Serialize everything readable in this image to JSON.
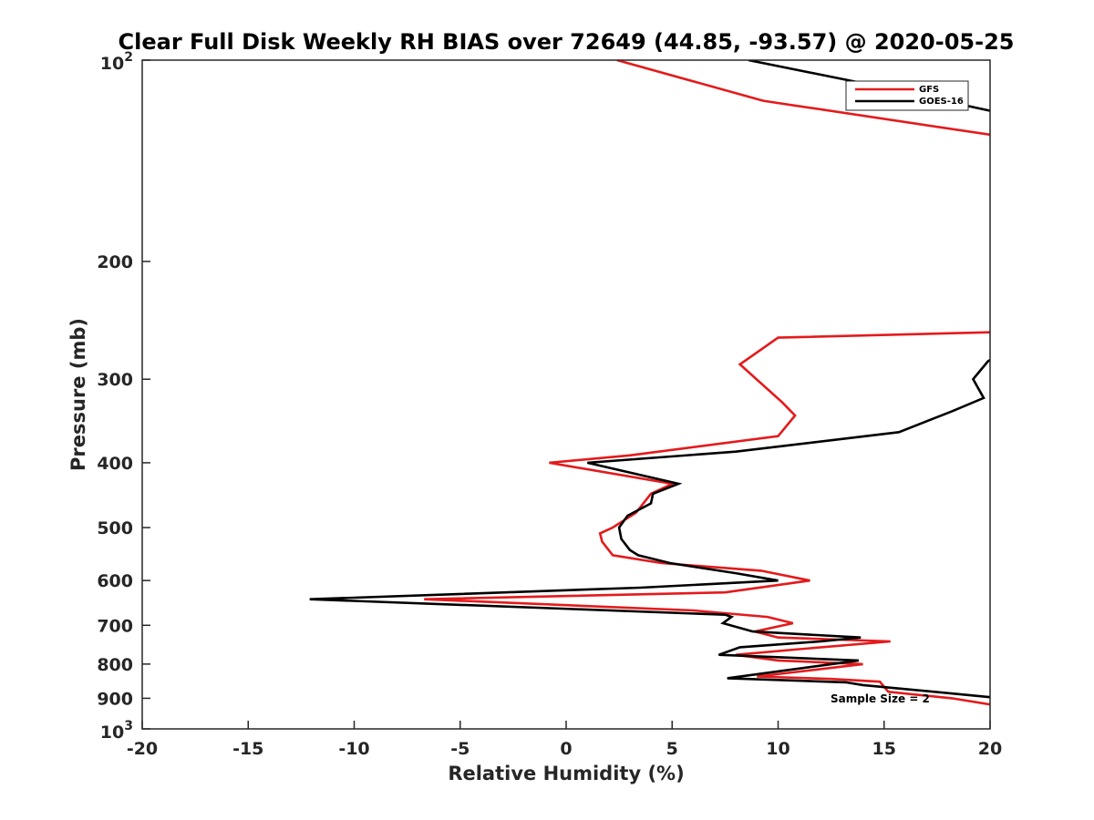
{
  "chart_data": {
    "type": "line",
    "title": "Clear Full Disk Weekly RH BIAS over 72649 (44.85, -93.57) @ 2020-05-25",
    "xlabel": "Relative Humidity (%)",
    "ylabel": "Pressure (mb)",
    "xlim": [
      -20,
      20
    ],
    "ylim": [
      100,
      1000
    ],
    "y_scale": "log",
    "y_reversed": true,
    "x_ticks": [
      "-20",
      "-15",
      "-10",
      "-5",
      "0",
      "5",
      "10",
      "15",
      "20"
    ],
    "y_ticks": [
      {
        "value": 100,
        "base": "10",
        "exp": "2"
      },
      {
        "value": 200,
        "label": "200"
      },
      {
        "value": 300,
        "label": "300"
      },
      {
        "value": 400,
        "label": "400"
      },
      {
        "value": 500,
        "label": "500"
      },
      {
        "value": 600,
        "label": "600"
      },
      {
        "value": 700,
        "label": "700"
      },
      {
        "value": 800,
        "label": "800"
      },
      {
        "value": 900,
        "label": "900"
      },
      {
        "value": 1000,
        "base": "10",
        "exp": "3"
      }
    ],
    "grid": false,
    "legend_position": "top-right",
    "annotation": "Sample Size = 2",
    "series": [
      {
        "name": "GFS",
        "color": "#e41a1c",
        "points": [
          [
            2.4,
            100
          ],
          [
            9.3,
            115
          ],
          [
            20.5,
            130
          ],
          [
            20.5,
            255
          ],
          [
            10.0,
            260
          ],
          [
            8.2,
            285
          ],
          [
            10.2,
            325
          ],
          [
            10.8,
            340
          ],
          [
            10.0,
            365
          ],
          [
            3.0,
            390
          ],
          [
            -0.8,
            400
          ],
          [
            5.0,
            430
          ],
          [
            4.0,
            445
          ],
          [
            3.3,
            475
          ],
          [
            2.2,
            500
          ],
          [
            1.6,
            510
          ],
          [
            1.7,
            525
          ],
          [
            2.2,
            550
          ],
          [
            4.5,
            565
          ],
          [
            9.2,
            580
          ],
          [
            11.5,
            600
          ],
          [
            7.5,
            625
          ],
          [
            -6.7,
            640
          ],
          [
            6.0,
            665
          ],
          [
            9.5,
            680
          ],
          [
            10.7,
            695
          ],
          [
            8.9,
            715
          ],
          [
            10.0,
            730
          ],
          [
            15.3,
            740
          ],
          [
            11.0,
            760
          ],
          [
            8.0,
            775
          ],
          [
            10.0,
            790
          ],
          [
            14.0,
            800
          ],
          [
            9.0,
            835
          ],
          [
            12.5,
            842
          ],
          [
            14.8,
            850
          ],
          [
            15.2,
            880
          ],
          [
            18.2,
            900
          ],
          [
            20.5,
            925
          ]
        ]
      },
      {
        "name": "GOES-16",
        "color": "#000000",
        "points": [
          [
            8.6,
            100
          ],
          [
            16.3,
            112
          ],
          [
            16.7,
            113
          ],
          [
            20.5,
            120
          ],
          [
            20.5,
            275
          ],
          [
            19.9,
            282
          ],
          [
            19.2,
            300
          ],
          [
            19.7,
            320
          ],
          [
            18.2,
            335
          ],
          [
            15.7,
            360
          ],
          [
            8.0,
            385
          ],
          [
            1.0,
            400
          ],
          [
            5.3,
            430
          ],
          [
            4.1,
            445
          ],
          [
            4.0,
            460
          ],
          [
            2.9,
            480
          ],
          [
            2.5,
            500
          ],
          [
            2.6,
            520
          ],
          [
            3.0,
            540
          ],
          [
            3.4,
            550
          ],
          [
            4.9,
            565
          ],
          [
            8.0,
            585
          ],
          [
            10.0,
            600
          ],
          [
            3.5,
            615
          ],
          [
            -12.1,
            640
          ],
          [
            7.5,
            675
          ],
          [
            7.8,
            680
          ],
          [
            7.4,
            695
          ],
          [
            8.8,
            715
          ],
          [
            13.9,
            730
          ],
          [
            12.0,
            740
          ],
          [
            8.2,
            755
          ],
          [
            7.2,
            775
          ],
          [
            13.8,
            790
          ],
          [
            7.6,
            840
          ],
          [
            13.2,
            852
          ],
          [
            14.0,
            860
          ],
          [
            19.0,
            890
          ],
          [
            20.5,
            900
          ]
        ]
      }
    ]
  }
}
